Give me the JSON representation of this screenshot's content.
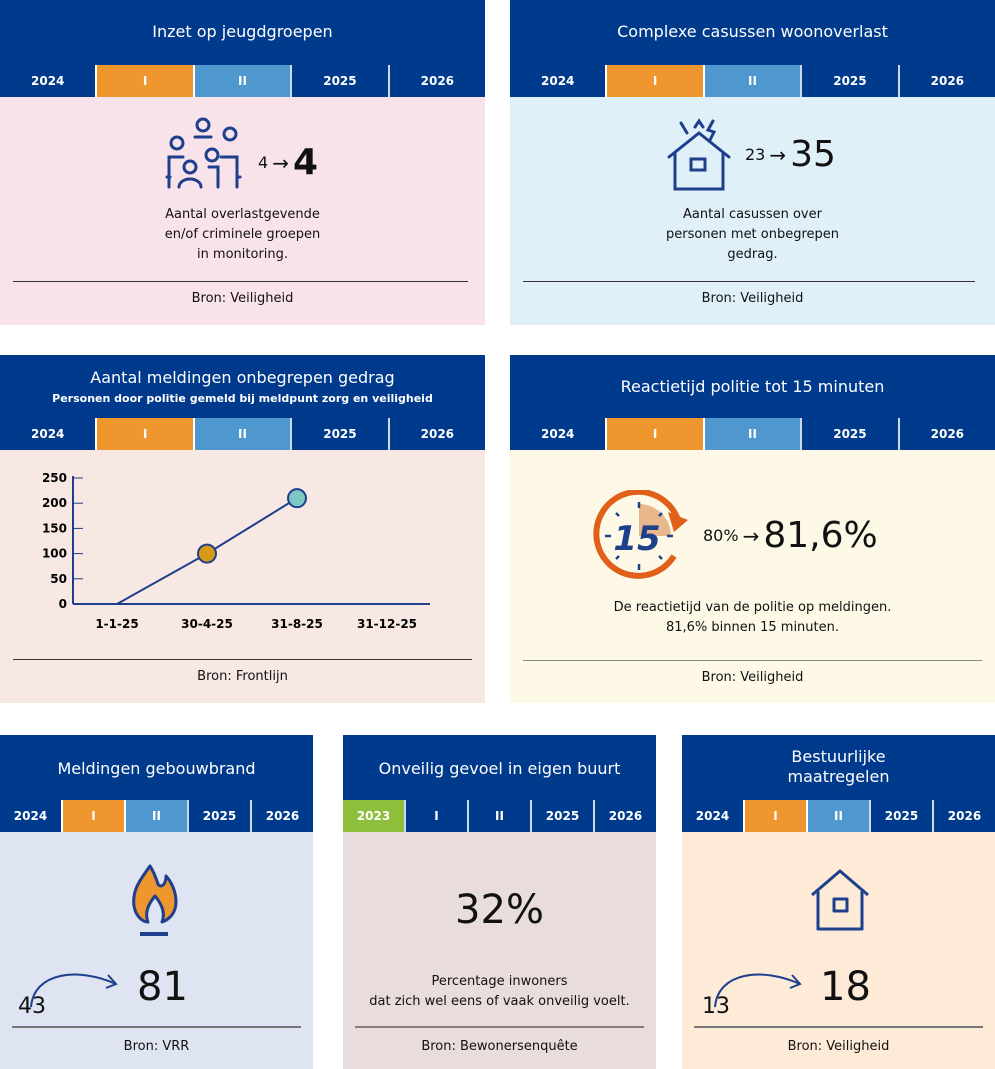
{
  "colors": {
    "header": "#003a8c",
    "orange": "#f0962e",
    "lightblue": "#4f97cf",
    "green": "#8dbf3c"
  },
  "timeline_default": [
    {
      "label": "2024",
      "state": "plain"
    },
    {
      "label": "I",
      "state": "orange"
    },
    {
      "label": "II",
      "state": "lightblue"
    },
    {
      "label": "2025",
      "state": "plain"
    },
    {
      "label": "2026",
      "state": "plain"
    }
  ],
  "timeline_survey": [
    {
      "label": "2023",
      "state": "green"
    },
    {
      "label": "I",
      "state": "plain"
    },
    {
      "label": "II",
      "state": "plain"
    },
    {
      "label": "2025",
      "state": "plain"
    },
    {
      "label": "2026",
      "state": "plain"
    }
  ],
  "cards": {
    "jeugdgroepen": {
      "title": "Inzet op jeugdgroepen",
      "icon": "people-group-icon",
      "from": "4",
      "to": "4",
      "desc1": "Aantal overlastgevende",
      "desc2": "en/of criminele groepen",
      "desc3": "in monitoring.",
      "source": "Bron: Veiligheid"
    },
    "woonoverlast": {
      "title": "Complexe casussen woonoverlast",
      "icon": "house-disturbance-icon",
      "from": "23",
      "to": "35",
      "desc1": "Aantal casussen over",
      "desc2": "personen met onbegrepen",
      "desc3": "gedrag.",
      "source": "Bron: Veiligheid"
    },
    "meldingen": {
      "title": "Aantal meldingen onbegrepen gedrag",
      "subtitle": "Personen door politie gemeld bij meldpunt zorg en veiligheid",
      "source": "Bron: Frontlijn"
    },
    "reactietijd": {
      "title": "Reactietijd politie tot 15 minuten",
      "icon": "stopwatch-15-icon",
      "icon_text": "15",
      "from": "80%",
      "to": "81,6%",
      "desc1": "De reactietijd van de politie op meldingen.",
      "desc2": "81,6% binnen 15 minuten.",
      "source": "Bron: Veiligheid"
    },
    "gebouwbrand": {
      "title": "Meldingen gebouwbrand",
      "icon": "flame-icon",
      "from": "43",
      "to": "81",
      "source": "Bron: VRR"
    },
    "onveilig": {
      "title": "Onveilig gevoel in eigen buurt",
      "value": "32%",
      "desc1": "Percentage inwoners",
      "desc2": "dat zich wel eens of vaak onveilig voelt.",
      "source": "Bron: Bewonersenquête"
    },
    "maatregelen": {
      "title1": "Bestuurlijke",
      "title2": "maatregelen",
      "icon": "house-icon",
      "from": "13",
      "to": "18",
      "source": "Bron: Veiligheid"
    }
  },
  "chart_data": {
    "type": "line",
    "title": "Aantal meldingen onbegrepen gedrag",
    "categories": [
      "1-1-25",
      "30-4-25",
      "31-8-25",
      "31-12-25"
    ],
    "values": [
      0,
      100,
      210,
      null
    ],
    "point_colors": [
      "none",
      "#d89a14",
      "#7ec8c4"
    ],
    "yticks": [
      0,
      50,
      100,
      150,
      200,
      250
    ],
    "ylim": [
      0,
      250
    ],
    "xlabel": "",
    "ylabel": "",
    "grid": false
  }
}
